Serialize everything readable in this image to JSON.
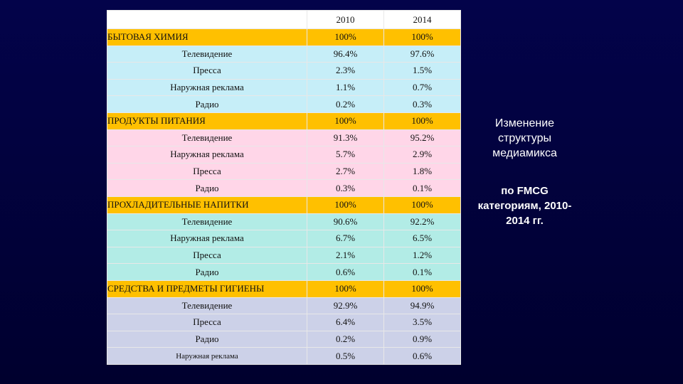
{
  "table": {
    "header": [
      "2010",
      "2014"
    ],
    "sections": [
      {
        "title": "БЫТОВАЯ ХИМИЯ",
        "values": [
          "100%",
          "100%"
        ],
        "rows": [
          {
            "label": "Телевидение",
            "values": [
              "96.4%",
              "97.6%"
            ]
          },
          {
            "label": "Пресса",
            "values": [
              "2.3%",
              "1.5%"
            ]
          },
          {
            "label": "Наружная реклама",
            "values": [
              "1.1%",
              "0.7%"
            ]
          },
          {
            "label": "Радио",
            "values": [
              "0.2%",
              "0.3%"
            ]
          }
        ]
      },
      {
        "title": "ПРОДУКТЫ ПИТАНИЯ",
        "values": [
          "100%",
          "100%"
        ],
        "rows": [
          {
            "label": "Телевидение",
            "values": [
              "91.3%",
              "95.2%"
            ]
          },
          {
            "label": "Наружная реклама",
            "values": [
              "5.7%",
              "2.9%"
            ]
          },
          {
            "label": "Пресса",
            "values": [
              "2.7%",
              "1.8%"
            ]
          },
          {
            "label": "Радио",
            "values": [
              "0.3%",
              "0.1%"
            ]
          }
        ]
      },
      {
        "title": "ПРОХЛАДИТЕЛЬНЫЕ НАПИТКИ",
        "values": [
          "100%",
          "100%"
        ],
        "rows": [
          {
            "label": "Телевидение",
            "values": [
              "90.6%",
              "92.2%"
            ]
          },
          {
            "label": "Наружная реклама",
            "values": [
              "6.7%",
              "6.5%"
            ]
          },
          {
            "label": "Пресса",
            "values": [
              "2.1%",
              "1.2%"
            ]
          },
          {
            "label": "Радио",
            "values": [
              "0.6%",
              "0.1%"
            ]
          }
        ]
      },
      {
        "title": "СРЕДСТВА И ПРЕДМЕТЫ ГИГИЕНЫ",
        "values": [
          "100%",
          "100%"
        ],
        "rows": [
          {
            "label": "Телевидение",
            "values": [
              "92.9%",
              "94.9%"
            ]
          },
          {
            "label": "Пресса",
            "values": [
              "6.4%",
              "3.5%"
            ]
          },
          {
            "label": "Радио",
            "values": [
              "0.2%",
              "0.9%"
            ]
          },
          {
            "label": "Наружная реклама",
            "values": [
              "0.5%",
              "0.6%"
            ]
          }
        ]
      }
    ]
  },
  "side": {
    "title": "Изменение структуры медиамикса",
    "subtitle": "по FMCG категориям, 2010-2014 гг."
  }
}
